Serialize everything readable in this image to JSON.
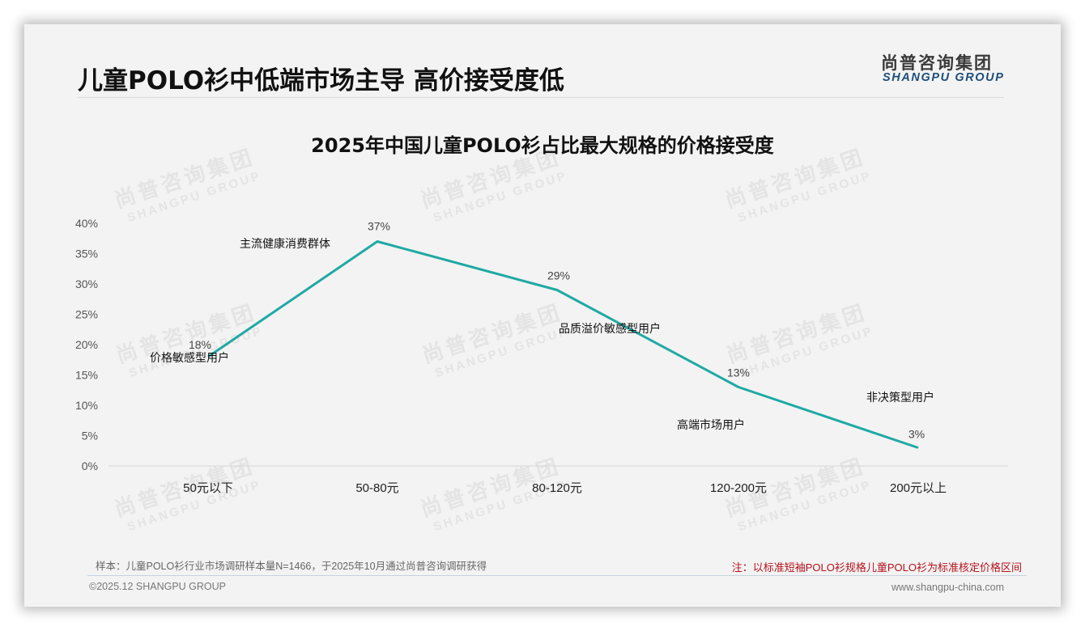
{
  "header": {
    "title": "儿童POLO衫中低端市场主导 高价接受度低",
    "logo_cn": "尚普咨询集团",
    "logo_en": "SHANGPU GROUP"
  },
  "watermark": {
    "cn": "尚普咨询集团",
    "en": "SHANGPU GROUP"
  },
  "chart_data": {
    "type": "line",
    "title": "2025年中国儿童POLO衫占比最大规格的价格接受度",
    "categories": [
      "50元以下",
      "50-80元",
      "80-120元",
      "120-200元",
      "200元以上"
    ],
    "values": [
      18,
      37,
      29,
      13,
      3
    ],
    "value_labels": [
      "18%",
      "37%",
      "29%",
      "13%",
      "3%"
    ],
    "annotations": [
      "价格敏感型用户",
      "主流健康消费群体",
      "品质溢价敏感型用户",
      "高端市场用户",
      "非决策型用户"
    ],
    "xlabel": "",
    "ylabel": "",
    "ylim": [
      0,
      40
    ],
    "yticks": [
      "0%",
      "5%",
      "10%",
      "15%",
      "20%",
      "25%",
      "30%",
      "35%",
      "40%"
    ],
    "grid": false,
    "legend": "none",
    "line_color": "#1fa9a4"
  },
  "footer": {
    "sample": "样本：儿童POLO衫行业市场调研样本量N=1466，于2025年10月通过尚普咨询调研获得",
    "note": "注：以标准短袖POLO衫规格儿童POLO衫为标准核定价格区间",
    "copyright": "©2025.12 SHANGPU GROUP",
    "website": "www.shangpu-china.com"
  }
}
